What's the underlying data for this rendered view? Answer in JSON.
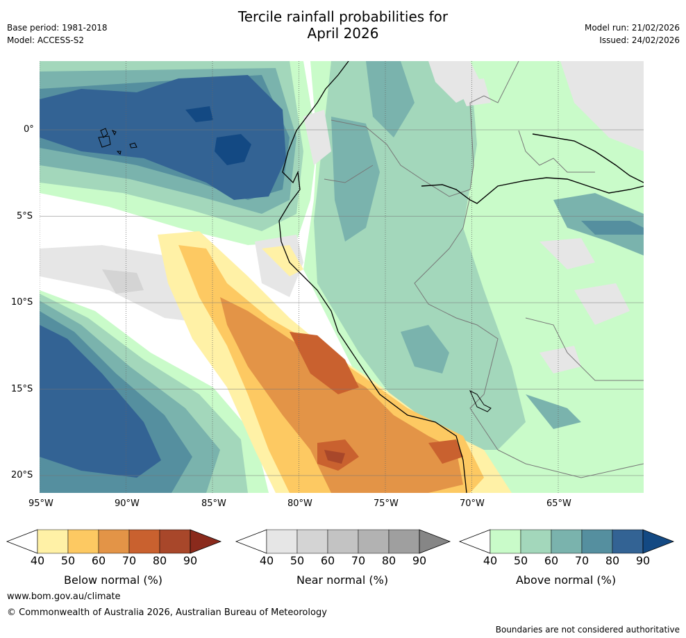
{
  "header": {
    "title_line1": "Tercile rainfall probabilities for",
    "title_line2": "April 2026",
    "base_period": "Base period: 1981-2018",
    "model": "Model: ACCESS-S2",
    "model_run": "Model run: 21/02/2026",
    "issued": "Issued: 24/02/2026"
  },
  "map": {
    "lon_labels": [
      "95°W",
      "90°W",
      "85°W",
      "80°W",
      "75°W",
      "70°W",
      "65°W"
    ],
    "lat_labels": [
      "0°",
      "5°S",
      "10°S",
      "15°S",
      "20°S"
    ]
  },
  "colorbars": [
    {
      "name": "below",
      "label": "Below normal (%)",
      "ticks": [
        "40",
        "50",
        "60",
        "70",
        "80",
        "90"
      ],
      "colors": [
        "#fff1a6",
        "#fdc962",
        "#e39447",
        "#c9612f",
        "#a8472a",
        "#8a2a1c"
      ]
    },
    {
      "name": "near",
      "label": "Near normal (%)",
      "ticks": [
        "40",
        "50",
        "60",
        "70",
        "80",
        "90"
      ],
      "colors": [
        "#e6e6e6",
        "#d4d4d4",
        "#c3c3c3",
        "#b2b2b2",
        "#9f9f9f",
        "#868686"
      ]
    },
    {
      "name": "above",
      "label": "Above normal (%)",
      "ticks": [
        "40",
        "50",
        "60",
        "70",
        "80",
        "90"
      ],
      "colors": [
        "#c9fbc9",
        "#a3d7bb",
        "#7ab3ad",
        "#558f9f",
        "#336394",
        "#134983"
      ]
    }
  ],
  "footer": {
    "website": "www.bom.gov.au/climate",
    "copyright": "© Commonwealth of Australia 2026, Australian Bureau of Meteorology",
    "disclaimer": "Boundaries are not considered authoritative"
  }
}
